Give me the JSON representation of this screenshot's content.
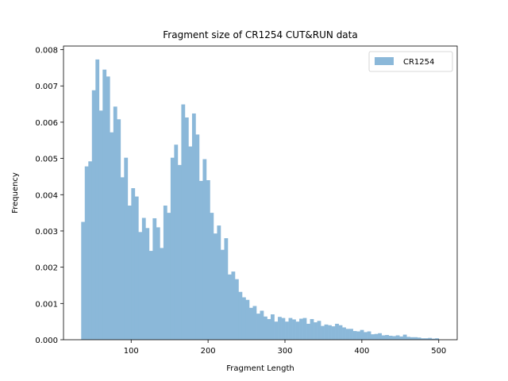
{
  "chart_data": {
    "type": "histogram",
    "title": "Fragment size of CR1254 CUT&RUN data",
    "xlabel": "Fragment Length",
    "ylabel": "Frequency",
    "xlim": [
      12,
      524
    ],
    "ylim": [
      0,
      0.0081
    ],
    "xticks": [
      100,
      200,
      300,
      400,
      500
    ],
    "yticks": [
      0.0,
      0.001,
      0.002,
      0.003,
      0.004,
      0.005,
      0.006,
      0.007,
      0.008
    ],
    "ytick_labels": [
      "0.000",
      "0.001",
      "0.002",
      "0.003",
      "0.004",
      "0.005",
      "0.006",
      "0.007",
      "0.008"
    ],
    "legend_position": "top-right",
    "series": [
      {
        "name": "CR1254",
        "color": "#8bb8d9",
        "bin_start": 35,
        "bin_width": 4.65,
        "values": [
          0.00325,
          0.00478,
          0.00492,
          0.00688,
          0.00773,
          0.00632,
          0.00745,
          0.00726,
          0.00572,
          0.00643,
          0.00608,
          0.00448,
          0.00502,
          0.0037,
          0.00418,
          0.00395,
          0.00297,
          0.00336,
          0.00308,
          0.00245,
          0.00335,
          0.0031,
          0.00253,
          0.0037,
          0.0035,
          0.00502,
          0.00538,
          0.00482,
          0.00649,
          0.00613,
          0.00533,
          0.00624,
          0.00566,
          0.00438,
          0.00498,
          0.0044,
          0.0035,
          0.00293,
          0.00315,
          0.00248,
          0.0028,
          0.0018,
          0.00188,
          0.00167,
          0.00132,
          0.00117,
          0.0011,
          0.00088,
          0.00093,
          0.00072,
          0.0008,
          0.00064,
          0.00057,
          0.0007,
          0.0005,
          0.00063,
          0.0006,
          0.0005,
          0.0006,
          0.00056,
          0.0005,
          0.00058,
          0.0006,
          0.00044,
          0.00057,
          0.00048,
          0.00052,
          0.00038,
          0.00042,
          0.0004,
          0.00037,
          0.00044,
          0.0004,
          0.00034,
          0.0003,
          0.0003,
          0.00024,
          0.00023,
          0.00027,
          0.00021,
          0.00023,
          0.00015,
          0.00016,
          0.00018,
          0.00012,
          0.00013,
          0.00011,
          0.0001,
          0.00012,
          9e-05,
          0.00014,
          8e-05,
          7e-05,
          7e-05,
          6e-05,
          4e-05,
          4e-05,
          5e-05,
          3e-05,
          4e-05
        ]
      }
    ]
  }
}
